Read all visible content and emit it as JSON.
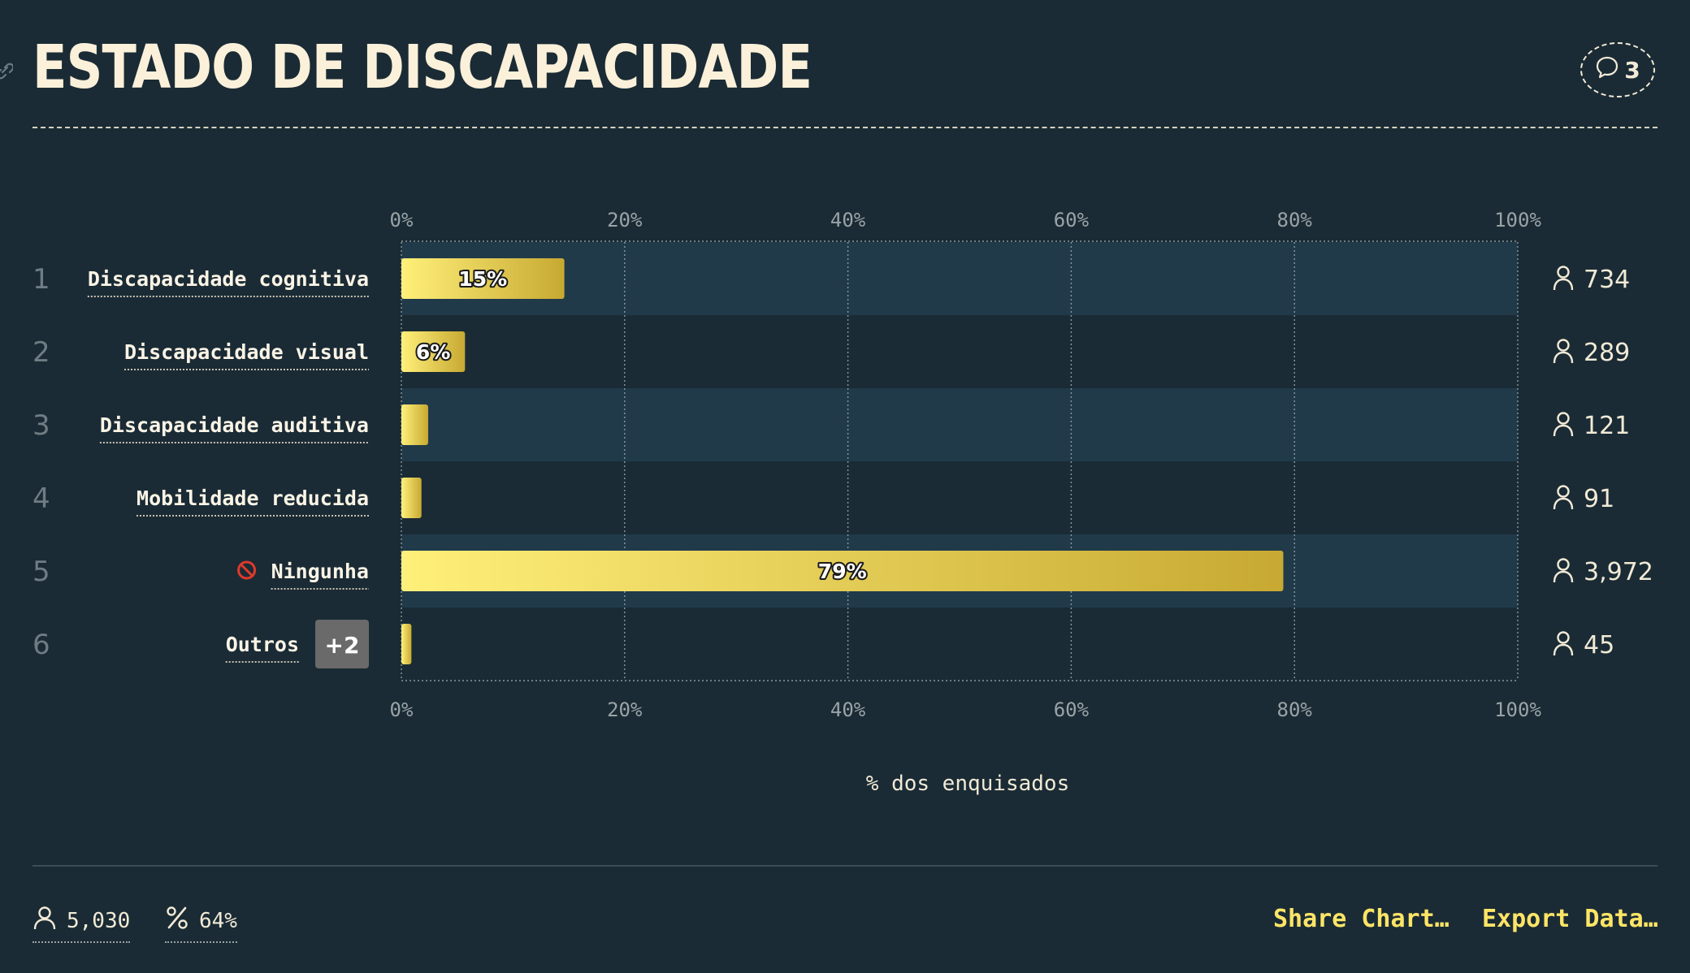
{
  "title": "ESTADO DE DISCAPACIDADE",
  "comments": {
    "count": "3",
    "icon": "speech-bubble-icon"
  },
  "chart_data": {
    "type": "bar",
    "orientation": "horizontal",
    "x_ticks": [
      "0%",
      "20%",
      "40%",
      "60%",
      "80%",
      "100%"
    ],
    "xlim": [
      0,
      100
    ],
    "xlabel": "% dos enquisados",
    "grid": true,
    "bar_color": "#f5dc50",
    "rows": [
      {
        "rank": "1",
        "label": "Discapacidade cognitiva",
        "value": 14.6,
        "value_label": "15%",
        "count": "734"
      },
      {
        "rank": "2",
        "label": "Discapacidade visual",
        "value": 5.7,
        "value_label": "6%",
        "count": "289"
      },
      {
        "rank": "3",
        "label": "Discapacidade auditiva",
        "value": 2.4,
        "value_label": "",
        "count": "121"
      },
      {
        "rank": "4",
        "label": "Mobilidade reducida",
        "value": 1.8,
        "value_label": "",
        "count": "91"
      },
      {
        "rank": "5",
        "label": "Ningunha",
        "value": 79,
        "value_label": "79%",
        "count": "3,972",
        "icon": "no-entry-icon"
      },
      {
        "rank": "6",
        "label": "Outros",
        "value": 0.9,
        "value_label": "",
        "count": "45",
        "badge": "+2"
      }
    ]
  },
  "footer": {
    "respondents": "5,030",
    "percent": "64%",
    "share_label": "Share Chart…",
    "export_label": "Export Data…"
  },
  "colors": {
    "background": "#1a2b35",
    "row_stripe": "#203a4a",
    "accent": "#ffe566",
    "text": "#f2ead6"
  }
}
